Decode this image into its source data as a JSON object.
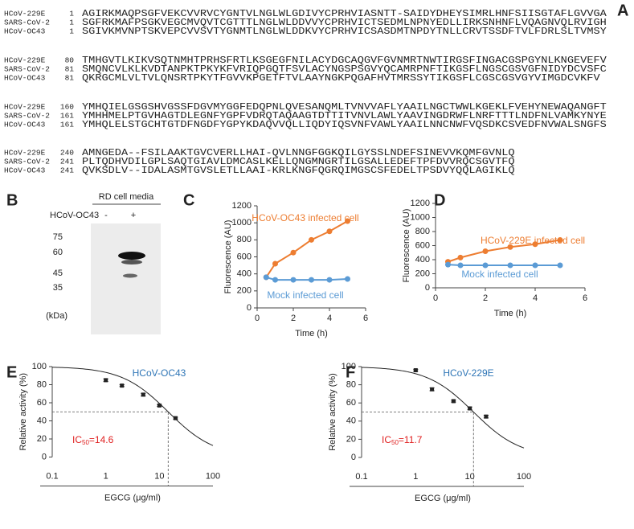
{
  "alignment": {
    "label": "A",
    "blocks": [
      {
        "rows": [
          {
            "name": "HCoV-229E",
            "start": 1,
            "seq": "AGIRKMAQPSGFVEKCVVRVCYGNTVLNGLWLGDIVYCPRHVIASNTT-SAIDYDHEYSIMRLHNFSIISGTAFLGVVGA"
          },
          {
            "name": "SARS-CoV-2",
            "start": 1,
            "seq": "SGFRKMAFPSGKVEGCMVQVTCGTTTLNGLWLDDVVYCPRHVICTSEDMLNPNYEDLLIRKSNHNFLVQAGNVQLRVIGH"
          },
          {
            "name": "HCoV-OC43",
            "start": 1,
            "seq": "SGIVKMVNPTSKVEPCVVSVTYGNMTLNGLWLDDKVYCPRHVICSASDMTNPDYTNLLCRVTSSDFTVLFDRLSLTVMSY"
          }
        ]
      },
      {
        "rows": [
          {
            "name": "HCoV-229E",
            "start": 80,
            "seq": "TMHGVTLKIKVSQTNMHTPRHSFRTLKSGEGFNILACYDGCAQGVFGVNMRTNWTIRGSFINGACGSPGYNLKNGEVEFV"
          },
          {
            "name": "SARS-CoV-2",
            "start": 81,
            "seq": "SMQNCVLKLKVDTANPKTPKYKFVRIQPGQTFSVLACYNGSPSGVYQCAMRPNFTIKGSFLNGSCGSVGFNIDYDCVSFC"
          },
          {
            "name": "HCoV-OC43",
            "start": 81,
            "seq": "QKRGCMLVLTVLQNSRTPKYTFGVVKPGETFTVLAAYNGKPQGAFHVTMRSSYTIKGSFLCGSCGSVGYVIMGDCVKFV"
          }
        ]
      },
      {
        "rows": [
          {
            "name": "HCoV-229E",
            "start": 160,
            "seq": "YMHQIELGSGSHVGSSFDGVMYGGFEDQPNLQVESANQMLTVNVVAFLYAAILNGCTWWLKGEKLFVEHYNEWAQANGFT"
          },
          {
            "name": "SARS-CoV-2",
            "start": 161,
            "seq": "YMHHMELPTGVHAGTDLEGNFYGPFVDRQTAQAAGTDTTITVNVLAWLYAAVINGDRWFLNRFTTTLNDFNLVAMKYNYE"
          },
          {
            "name": "HCoV-OC43",
            "start": 161,
            "seq": "YMHQLELSTGCHTGTDFNGDFYGPYKDAQVVQLLIQDYIQSVNFVAWLYAAILNNCNWFVQSDKCSVEDFNVWALSNGFS"
          }
        ]
      },
      {
        "rows": [
          {
            "name": "HCoV-229E",
            "start": 240,
            "seq": "AMNGEDA--FSILAAKTGVCVERLLHAI-QVLNNGFGGKQILGYSSLNDEFSINEVVKQMFGVNLQ"
          },
          {
            "name": "SARS-CoV-2",
            "start": 241,
            "seq": "PLTQDHVDILGPLSAQTGIAVLDMCASLKELLQNGMNGRTILGSALLEDEFTPFDVVRQCSGVTFQ"
          },
          {
            "name": "HCoV-OC43",
            "start": 241,
            "seq": "QVKSDLV--IDALASMTGVSLETLLAAI-KRLKNGFQGRQIMGSCSFEDELTPSDVYQQLAGIKLQ"
          }
        ]
      }
    ]
  },
  "blot": {
    "label": "B",
    "header": "RD cell media",
    "sample": "HCoV-OC43",
    "lanes": [
      "-",
      "+"
    ],
    "markers": [
      "75",
      "60",
      "45",
      "35"
    ],
    "unit": "(kDa)"
  },
  "chart_data": [
    {
      "label": "C",
      "type": "line",
      "x": [
        0.5,
        1,
        2,
        3,
        4,
        5
      ],
      "series": [
        {
          "name": "HCoV-OC43 infected cell",
          "color": "#ed7d31",
          "values": [
            360,
            520,
            650,
            800,
            900,
            1020
          ]
        },
        {
          "name": "Mock infected cell",
          "color": "#5b9bd5",
          "values": [
            360,
            330,
            330,
            330,
            330,
            340
          ]
        }
      ],
      "xlim": [
        0,
        6
      ],
      "xticks": [
        0,
        2,
        4,
        6
      ],
      "ylim": [
        0,
        1200
      ],
      "yticks": [
        0,
        200,
        400,
        600,
        800,
        1000,
        1200
      ],
      "xlabel": "Time  (h)",
      "ylabel": "Fluorescence (AU)"
    },
    {
      "label": "D",
      "type": "line",
      "x": [
        0.5,
        1,
        2,
        3,
        4,
        5
      ],
      "series": [
        {
          "name": "HCoV-229E infected cell",
          "color": "#ed7d31",
          "values": [
            370,
            430,
            520,
            580,
            620,
            680
          ]
        },
        {
          "name": "Mock infected cell",
          "color": "#5b9bd5",
          "values": [
            330,
            320,
            320,
            320,
            320,
            320
          ]
        }
      ],
      "xlim": [
        0,
        6
      ],
      "xticks": [
        0,
        2,
        4,
        6
      ],
      "ylim": [
        0,
        1200
      ],
      "yticks": [
        0,
        200,
        400,
        600,
        800,
        1000,
        1200
      ],
      "xlabel": "Time  (h)",
      "ylabel": "Fluorescence (AU)"
    },
    {
      "label": "E",
      "type": "dose_response",
      "log_x": true,
      "x": [
        1,
        2,
        5,
        10,
        20
      ],
      "series": [
        {
          "name": "HCoV-OC43",
          "color": "#2e75b6",
          "values": [
            85,
            79,
            69,
            57,
            43
          ],
          "errors": [
            1.5,
            1,
            1.5,
            1,
            1
          ]
        }
      ],
      "ic50": 14.6,
      "ic50_label": {
        "text": "IC",
        "sub": "50",
        "value_text": "=14.6"
      },
      "xlim": [
        0.1,
        100
      ],
      "xticks": [
        0.1,
        1,
        10,
        100
      ],
      "ylim": [
        0,
        100
      ],
      "yticks": [
        0,
        20,
        40,
        60,
        80,
        100
      ],
      "xlabel": "EGCG (μg/ml)",
      "ylabel": "Relative activity (%)"
    },
    {
      "label": "F",
      "type": "dose_response",
      "log_x": true,
      "x": [
        1,
        2,
        5,
        10,
        20
      ],
      "series": [
        {
          "name": "HCoV-229E",
          "color": "#2e75b6",
          "values": [
            96,
            75,
            62,
            54,
            45
          ],
          "errors": [
            1,
            1.5,
            1,
            1.5,
            1.5
          ]
        }
      ],
      "ic50": 11.7,
      "ic50_label": {
        "text": "IC",
        "sub": "50",
        "value_text": "=11.7"
      },
      "xlim": [
        0.1,
        100
      ],
      "xticks": [
        0.1,
        1,
        10,
        100
      ],
      "ylim": [
        0,
        100
      ],
      "yticks": [
        0,
        20,
        40,
        60,
        80,
        100
      ],
      "xlabel": "EGCG (μg/ml)",
      "ylabel": "Relative activity (%)"
    }
  ]
}
